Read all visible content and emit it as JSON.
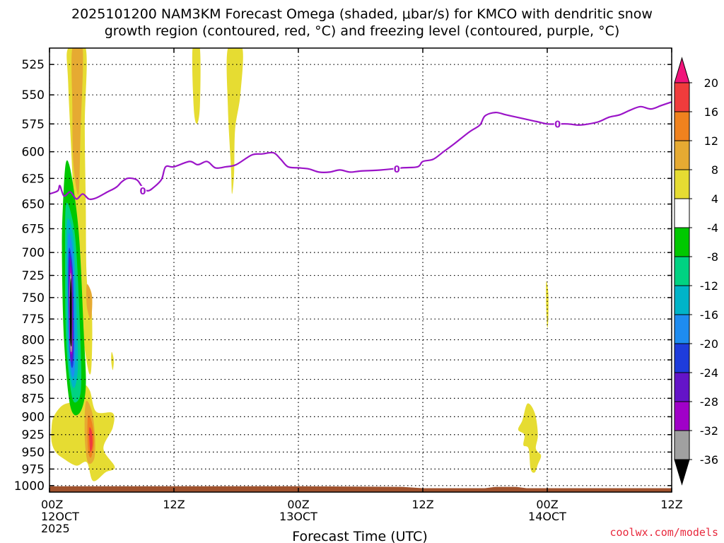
{
  "chart_data": {
    "type": "heatmap",
    "title": "2025101200 NAM3KM Forecast Omega (shaded, μbar/s) for KMCO with dendritic snow",
    "subtitle": "growth region (contoured, red, °C) and freezing level (contoured, purple, °C)",
    "xlabel": "Forecast Time (UTC)",
    "ylabel": "",
    "x_range_hours": [
      0,
      60
    ],
    "y_range_hPa": [
      1010,
      512
    ],
    "y_scale": "log",
    "grid": true,
    "y_ticks": [
      525,
      550,
      575,
      600,
      625,
      650,
      675,
      700,
      725,
      750,
      775,
      800,
      825,
      850,
      875,
      900,
      925,
      950,
      975,
      1000
    ],
    "x_ticks": [
      {
        "hour": 0,
        "line1": "00Z",
        "line2": "12OCT",
        "line3": "2025"
      },
      {
        "hour": 12,
        "line1": "12Z",
        "line2": "",
        "line3": ""
      },
      {
        "hour": 24,
        "line1": "00Z",
        "line2": "13OCT",
        "line3": ""
      },
      {
        "hour": 36,
        "line1": "12Z",
        "line2": "",
        "line3": ""
      },
      {
        "hour": 48,
        "line1": "00Z",
        "line2": "14OCT",
        "line3": ""
      },
      {
        "hour": 60,
        "line1": "12Z",
        "line2": "",
        "line3": ""
      }
    ],
    "colorbar": {
      "labels": [
        "20",
        "16",
        "12",
        "8",
        "4",
        "-4",
        "-8",
        "-12",
        "-16",
        "-20",
        "-24",
        "-28",
        "-32",
        "-36"
      ],
      "bins": [
        {
          "lo": 20,
          "hi": 24,
          "color": "#f0147a"
        },
        {
          "lo": 16,
          "hi": 20,
          "color": "#f03c3c"
        },
        {
          "lo": 12,
          "hi": 16,
          "color": "#f0821e"
        },
        {
          "lo": 8,
          "hi": 12,
          "color": "#e6aa32"
        },
        {
          "lo": 4,
          "hi": 8,
          "color": "#e6dc32"
        },
        {
          "lo": -4,
          "hi": 4,
          "color": "#ffffff"
        },
        {
          "lo": -8,
          "hi": -4,
          "color": "#00c800"
        },
        {
          "lo": -12,
          "hi": -8,
          "color": "#00d282"
        },
        {
          "lo": -16,
          "hi": -12,
          "color": "#00b4c8"
        },
        {
          "lo": -20,
          "hi": -16,
          "color": "#1e8cf0"
        },
        {
          "lo": -24,
          "hi": -20,
          "color": "#1e3cdc"
        },
        {
          "lo": -28,
          "hi": -24,
          "color": "#6414c8"
        },
        {
          "lo": -32,
          "hi": -28,
          "color": "#a000c8"
        },
        {
          "lo": -36,
          "hi": -32,
          "color": "#a0a0a0"
        },
        {
          "lo": -40,
          "hi": -36,
          "color": "#000000"
        }
      ]
    },
    "freezing_level": {
      "color": "#9b14c8",
      "label": "0",
      "label_points": [
        {
          "hour": 9,
          "p": 637
        },
        {
          "hour": 33.5,
          "p": 616
        },
        {
          "hour": 49,
          "p": 575
        }
      ],
      "points": [
        [
          0,
          640
        ],
        [
          0.8,
          637
        ],
        [
          1,
          632
        ],
        [
          1.4,
          642
        ],
        [
          2,
          638
        ],
        [
          2.6,
          645
        ],
        [
          3.2,
          640
        ],
        [
          3.8,
          645
        ],
        [
          4.5,
          644
        ],
        [
          5.6,
          638
        ],
        [
          6,
          636
        ],
        [
          6.5,
          633
        ],
        [
          7,
          628
        ],
        [
          7.5,
          625
        ],
        [
          8,
          625
        ],
        [
          8.5,
          627
        ],
        [
          9,
          634
        ],
        [
          9.5,
          637
        ],
        [
          10,
          634
        ],
        [
          10.8,
          626
        ],
        [
          11.2,
          614
        ],
        [
          12,
          614
        ],
        [
          13.5,
          609
        ],
        [
          14.3,
          612
        ],
        [
          15.2,
          609
        ],
        [
          16,
          615
        ],
        [
          17,
          614
        ],
        [
          18,
          612
        ],
        [
          19.5,
          603
        ],
        [
          20.5,
          602
        ],
        [
          21.6,
          601
        ],
        [
          22.3,
          607
        ],
        [
          23,
          614
        ],
        [
          24,
          615
        ],
        [
          25,
          616
        ],
        [
          26,
          619
        ],
        [
          27,
          619
        ],
        [
          28,
          617
        ],
        [
          29,
          619
        ],
        [
          30,
          618
        ],
        [
          32,
          617
        ],
        [
          34,
          615
        ],
        [
          35.5,
          614
        ],
        [
          36,
          609
        ],
        [
          37,
          607
        ],
        [
          38,
          600
        ],
        [
          39,
          593
        ],
        [
          40.5,
          582
        ],
        [
          41.5,
          576
        ],
        [
          42,
          568
        ],
        [
          43,
          565
        ],
        [
          44,
          567
        ],
        [
          45,
          569
        ],
        [
          46,
          571
        ],
        [
          47,
          573
        ],
        [
          48,
          575
        ],
        [
          49,
          575
        ],
        [
          50,
          575
        ],
        [
          51,
          576
        ],
        [
          52,
          575
        ],
        [
          53,
          573
        ],
        [
          54,
          569
        ],
        [
          55,
          567
        ],
        [
          56,
          563
        ],
        [
          57,
          560
        ],
        [
          58,
          562
        ],
        [
          59,
          559
        ],
        [
          60,
          556
        ]
      ]
    },
    "omega_regions": [
      {
        "value": 4,
        "points": [
          [
            1.8,
            512
          ],
          [
            3.5,
            512
          ],
          [
            3.4,
            575
          ],
          [
            3.5,
            650
          ],
          [
            3.6,
            730
          ],
          [
            4.1,
            770
          ],
          [
            4.0,
            840
          ],
          [
            3.5,
            820
          ],
          [
            2.6,
            720
          ],
          [
            2.2,
            620
          ],
          [
            1.8,
            540
          ]
        ]
      },
      {
        "value": 8,
        "points": [
          [
            2.2,
            512
          ],
          [
            3.2,
            512
          ],
          [
            3.0,
            580
          ],
          [
            2.8,
            640
          ],
          [
            2.3,
            610
          ],
          [
            2.2,
            560
          ]
        ]
      },
      {
        "value": 8,
        "points": [
          [
            3.6,
            735
          ],
          [
            4.1,
            748
          ],
          [
            4.0,
            775
          ],
          [
            3.6,
            760
          ]
        ]
      },
      {
        "value": 4,
        "points": [
          [
            0.4,
            900
          ],
          [
            1.2,
            885
          ],
          [
            2.2,
            880
          ],
          [
            3.0,
            878
          ],
          [
            3.3,
            858
          ],
          [
            3.9,
            865
          ],
          [
            4.5,
            893
          ],
          [
            6.1,
            895
          ],
          [
            6.1,
            915
          ],
          [
            5.2,
            945
          ],
          [
            6.3,
            972
          ],
          [
            5.4,
            980
          ],
          [
            4.2,
            993
          ],
          [
            3.6,
            965
          ],
          [
            2.6,
            970
          ],
          [
            1.4,
            960
          ],
          [
            0.6,
            950
          ],
          [
            0.2,
            935
          ],
          [
            0.2,
            915
          ]
        ]
      },
      {
        "value": 8,
        "points": [
          [
            3.5,
            880
          ],
          [
            4.1,
            893
          ],
          [
            4.4,
            930
          ],
          [
            4.3,
            960
          ],
          [
            3.7,
            965
          ],
          [
            3.4,
            930
          ]
        ]
      },
      {
        "value": 12,
        "points": [
          [
            3.7,
            900
          ],
          [
            4.1,
            908
          ],
          [
            4.3,
            935
          ],
          [
            4.0,
            958
          ],
          [
            3.7,
            945
          ]
        ]
      },
      {
        "value": 16,
        "points": [
          [
            3.85,
            915
          ],
          [
            4.1,
            922
          ],
          [
            4.15,
            940
          ],
          [
            3.95,
            950
          ],
          [
            3.85,
            935
          ]
        ]
      },
      {
        "value": 4,
        "points": [
          [
            6.0,
            815
          ],
          [
            6.2,
            825
          ],
          [
            6.1,
            838
          ],
          [
            5.95,
            826
          ]
        ]
      },
      {
        "value": 4,
        "points": [
          [
            13.8,
            512
          ],
          [
            14.5,
            512
          ],
          [
            14.5,
            560
          ],
          [
            14.2,
            575
          ],
          [
            13.9,
            560
          ]
        ]
      },
      {
        "value": 4,
        "points": [
          [
            17.2,
            512
          ],
          [
            18.6,
            512
          ],
          [
            18.4,
            550
          ],
          [
            17.9,
            580
          ],
          [
            17.8,
            620
          ],
          [
            17.6,
            640
          ],
          [
            17.5,
            615
          ],
          [
            17.2,
            560
          ]
        ]
      },
      {
        "value": 4,
        "points": [
          [
            47.9,
            732
          ],
          [
            48.1,
            745
          ],
          [
            48.1,
            775
          ],
          [
            48.0,
            785
          ],
          [
            47.9,
            760
          ]
        ]
      },
      {
        "value": 4,
        "points": [
          [
            46.1,
            882
          ],
          [
            46.8,
            895
          ],
          [
            47.1,
            925
          ],
          [
            46.9,
            945
          ],
          [
            47.4,
            955
          ],
          [
            47.1,
            968
          ],
          [
            46.8,
            980
          ],
          [
            46.4,
            975
          ],
          [
            46.2,
            945
          ],
          [
            45.7,
            940
          ],
          [
            45.8,
            925
          ],
          [
            45.2,
            918
          ],
          [
            45.6,
            905
          ]
        ]
      },
      {
        "value": -4,
        "points": [
          [
            1.55,
            612
          ],
          [
            1.9,
            612
          ],
          [
            2.4,
            640
          ],
          [
            2.9,
            690
          ],
          [
            3.3,
            790
          ],
          [
            3.5,
            860
          ],
          [
            2.9,
            895
          ],
          [
            2.0,
            885
          ],
          [
            1.4,
            800
          ],
          [
            1.2,
            700
          ],
          [
            1.3,
            650
          ]
        ]
      },
      {
        "value": -8,
        "points": [
          [
            1.6,
            650
          ],
          [
            2.2,
            665
          ],
          [
            2.6,
            700
          ],
          [
            2.95,
            790
          ],
          [
            3.05,
            860
          ],
          [
            2.6,
            880
          ],
          [
            2.1,
            868
          ],
          [
            1.6,
            800
          ],
          [
            1.5,
            700
          ]
        ]
      },
      {
        "value": -12,
        "points": [
          [
            1.75,
            665
          ],
          [
            2.3,
            685
          ],
          [
            2.6,
            760
          ],
          [
            2.75,
            830
          ],
          [
            2.45,
            860
          ],
          [
            2.05,
            850
          ],
          [
            1.75,
            800
          ],
          [
            1.65,
            700
          ]
        ]
      },
      {
        "value": -16,
        "points": [
          [
            1.85,
            680
          ],
          [
            2.3,
            705
          ],
          [
            2.45,
            780
          ],
          [
            2.45,
            835
          ],
          [
            2.15,
            845
          ],
          [
            1.85,
            800
          ],
          [
            1.75,
            720
          ]
        ]
      },
      {
        "value": -20,
        "points": [
          [
            1.9,
            695
          ],
          [
            2.25,
            720
          ],
          [
            2.35,
            790
          ],
          [
            2.3,
            830
          ],
          [
            2.05,
            830
          ],
          [
            1.9,
            790
          ],
          [
            1.8,
            730
          ]
        ]
      },
      {
        "value": -24,
        "points": [
          [
            1.95,
            705
          ],
          [
            2.2,
            725
          ],
          [
            2.28,
            800
          ],
          [
            2.2,
            825
          ],
          [
            2.0,
            822
          ],
          [
            1.88,
            780
          ],
          [
            1.85,
            735
          ]
        ]
      },
      {
        "value": -28,
        "points": [
          [
            2.0,
            715
          ],
          [
            2.18,
            735
          ],
          [
            2.22,
            805
          ],
          [
            2.12,
            818
          ],
          [
            1.97,
            810
          ],
          [
            1.92,
            770
          ],
          [
            1.9,
            740
          ]
        ]
      },
      {
        "value": -32,
        "points": [
          [
            2.02,
            722
          ],
          [
            2.16,
            740
          ],
          [
            2.18,
            805
          ],
          [
            2.1,
            815
          ],
          [
            2.0,
            808
          ],
          [
            1.95,
            770
          ],
          [
            1.93,
            745
          ]
        ]
      },
      {
        "value": -36,
        "points": [
          [
            2.05,
            728
          ],
          [
            2.15,
            745
          ],
          [
            2.15,
            800
          ],
          [
            2.08,
            808
          ],
          [
            2.0,
            800
          ],
          [
            1.97,
            770
          ],
          [
            1.97,
            750
          ]
        ]
      }
    ],
    "terrain": {
      "color": "#a0522d",
      "bottom_p": 1010,
      "points": [
        [
          0,
          1001
        ],
        [
          24,
          1001
        ],
        [
          34,
          1002
        ],
        [
          36,
          1004
        ],
        [
          42,
          1004
        ],
        [
          43,
          1002
        ],
        [
          45,
          1002
        ],
        [
          46,
          1004
        ],
        [
          60,
          1004
        ]
      ]
    }
  },
  "credit": "coolwx.com/models"
}
